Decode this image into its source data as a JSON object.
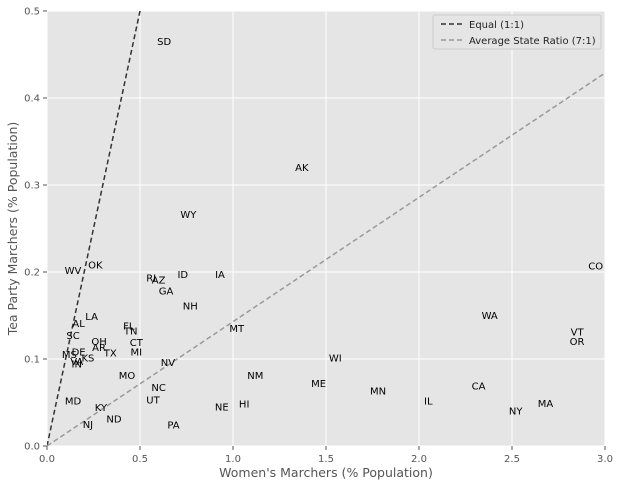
{
  "chart_data": {
    "type": "scatter",
    "title": "",
    "xlabel": "Women's Marchers (% Population)",
    "ylabel": "Tea Party Marchers (% Population)",
    "xlim": [
      0,
      3
    ],
    "ylim": [
      0,
      0.5
    ],
    "xticks": [
      "0.0",
      "0.5",
      "1.0",
      "1.5",
      "2.0",
      "2.5",
      "3.0"
    ],
    "yticks": [
      "0.0",
      "0.1",
      "0.2",
      "0.3",
      "0.4",
      "0.5"
    ],
    "grid": true,
    "legend_position": "top-right",
    "colors": {
      "background": "#e5e5e5",
      "grid": "#ffffff",
      "equal_line": "#333333",
      "ratio_line": "#999999"
    },
    "lines": [
      {
        "name": "Equal (1:1)",
        "slope": 1.0,
        "style": "dashed"
      },
      {
        "name": "Average State Ratio (7:1)",
        "slope": 0.1429,
        "style": "dashed"
      }
    ],
    "points": [
      {
        "label": "SD",
        "x": 0.63,
        "y": 0.465
      },
      {
        "label": "AK",
        "x": 1.37,
        "y": 0.32
      },
      {
        "label": "WY",
        "x": 0.76,
        "y": 0.266
      },
      {
        "label": "CO",
        "x": 2.95,
        "y": 0.207
      },
      {
        "label": "OK",
        "x": 0.26,
        "y": 0.208
      },
      {
        "label": "WV",
        "x": 0.14,
        "y": 0.202
      },
      {
        "label": "RI",
        "x": 0.56,
        "y": 0.193
      },
      {
        "label": "AZ",
        "x": 0.6,
        "y": 0.191
      },
      {
        "label": "ID",
        "x": 0.73,
        "y": 0.197
      },
      {
        "label": "IA",
        "x": 0.93,
        "y": 0.197
      },
      {
        "label": "GA",
        "x": 0.64,
        "y": 0.178
      },
      {
        "label": "NH",
        "x": 0.77,
        "y": 0.161
      },
      {
        "label": "WA",
        "x": 2.38,
        "y": 0.15
      },
      {
        "label": "LA",
        "x": 0.24,
        "y": 0.149
      },
      {
        "label": "AL",
        "x": 0.17,
        "y": 0.141
      },
      {
        "label": "FL",
        "x": 0.44,
        "y": 0.138
      },
      {
        "label": "MT",
        "x": 1.02,
        "y": 0.135
      },
      {
        "label": "TN",
        "x": 0.45,
        "y": 0.132
      },
      {
        "label": "VT",
        "x": 2.85,
        "y": 0.131
      },
      {
        "label": "SC",
        "x": 0.14,
        "y": 0.127
      },
      {
        "label": "OR",
        "x": 2.85,
        "y": 0.12
      },
      {
        "label": "OH",
        "x": 0.28,
        "y": 0.12
      },
      {
        "label": "CT",
        "x": 0.48,
        "y": 0.119
      },
      {
        "label": "AR",
        "x": 0.28,
        "y": 0.113
      },
      {
        "label": "MI",
        "x": 0.48,
        "y": 0.108
      },
      {
        "label": "TX",
        "x": 0.34,
        "y": 0.107
      },
      {
        "label": "DE",
        "x": 0.17,
        "y": 0.108
      },
      {
        "label": "MS",
        "x": 0.12,
        "y": 0.105
      },
      {
        "label": "WI",
        "x": 1.55,
        "y": 0.101
      },
      {
        "label": "KS",
        "x": 0.22,
        "y": 0.101
      },
      {
        "label": "VA",
        "x": 0.16,
        "y": 0.097
      },
      {
        "label": "NV",
        "x": 0.65,
        "y": 0.096
      },
      {
        "label": "IN",
        "x": 0.16,
        "y": 0.094
      },
      {
        "label": "NM",
        "x": 1.12,
        "y": 0.081
      },
      {
        "label": "MO",
        "x": 0.43,
        "y": 0.081
      },
      {
        "label": "ME",
        "x": 1.46,
        "y": 0.072
      },
      {
        "label": "CA",
        "x": 2.32,
        "y": 0.069
      },
      {
        "label": "NC",
        "x": 0.6,
        "y": 0.067
      },
      {
        "label": "MN",
        "x": 1.78,
        "y": 0.063
      },
      {
        "label": "UT",
        "x": 0.57,
        "y": 0.053
      },
      {
        "label": "MD",
        "x": 0.14,
        "y": 0.052
      },
      {
        "label": "IL",
        "x": 2.05,
        "y": 0.052
      },
      {
        "label": "MA",
        "x": 2.68,
        "y": 0.049
      },
      {
        "label": "HI",
        "x": 1.06,
        "y": 0.048
      },
      {
        "label": "NE",
        "x": 0.94,
        "y": 0.045
      },
      {
        "label": "KY",
        "x": 0.29,
        "y": 0.044
      },
      {
        "label": "NY",
        "x": 2.52,
        "y": 0.04
      },
      {
        "label": "ND",
        "x": 0.36,
        "y": 0.031
      },
      {
        "label": "NJ",
        "x": 0.22,
        "y": 0.025
      },
      {
        "label": "PA",
        "x": 0.68,
        "y": 0.024
      }
    ]
  }
}
